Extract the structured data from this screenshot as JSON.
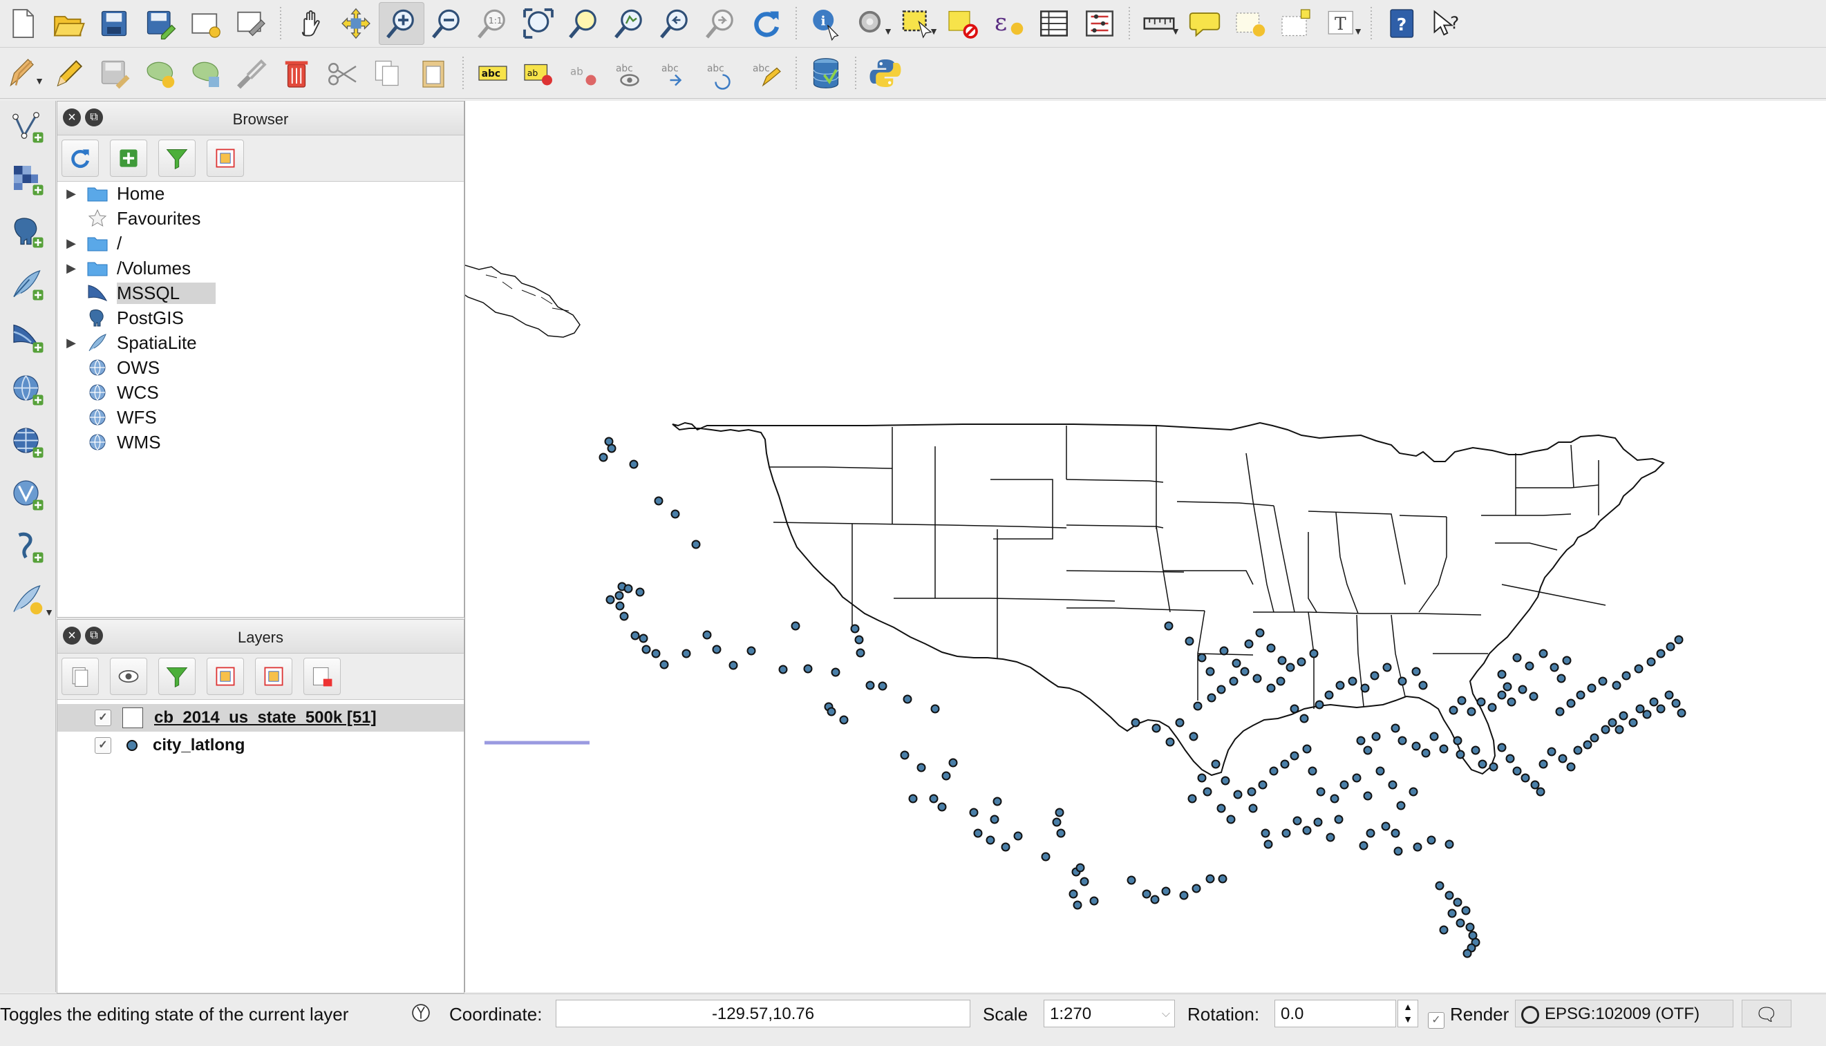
{
  "browser_panel": {
    "title": "Browser",
    "items": [
      {
        "label": "Home",
        "expandable": true,
        "icon": "folder-icon"
      },
      {
        "label": "Favourites",
        "expandable": false,
        "icon": "star-icon"
      },
      {
        "label": "/",
        "expandable": true,
        "icon": "folder-icon"
      },
      {
        "label": "/Volumes",
        "expandable": true,
        "icon": "folder-icon"
      },
      {
        "label": "MSSQL",
        "expandable": false,
        "icon": "mssql-icon",
        "selected": true
      },
      {
        "label": "PostGIS",
        "expandable": false,
        "icon": "elephant-icon"
      },
      {
        "label": "SpatiaLite",
        "expandable": true,
        "icon": "feather-icon"
      },
      {
        "label": "OWS",
        "expandable": false,
        "icon": "globe-icon"
      },
      {
        "label": "WCS",
        "expandable": false,
        "icon": "globe-icon"
      },
      {
        "label": "WFS",
        "expandable": false,
        "icon": "globe-icon"
      },
      {
        "label": "WMS",
        "expandable": false,
        "icon": "globe-icon"
      }
    ]
  },
  "layers_panel": {
    "title": "Layers",
    "layers": [
      {
        "name": "cb_2014_us_state_500k [51]",
        "checked": true,
        "type": "polygon",
        "selected": true
      },
      {
        "name": "city_latlong",
        "checked": true,
        "type": "point",
        "selected": false
      }
    ]
  },
  "statusbar": {
    "message": "Toggles the editing state of the current layer",
    "coordinate_label": "Coordinate:",
    "coordinate_value": "-129.57,10.76",
    "scale_label": "Scale",
    "scale_value": "1:270",
    "rotation_label": "Rotation:",
    "rotation_value": "0.0",
    "render_label": "Render",
    "render_checked": true,
    "crs": "EPSG:102009 (OTF)"
  },
  "map": {
    "point_fill": "#4a7fa8",
    "point_stroke": "#111111",
    "boundary_stroke": "#111111"
  }
}
